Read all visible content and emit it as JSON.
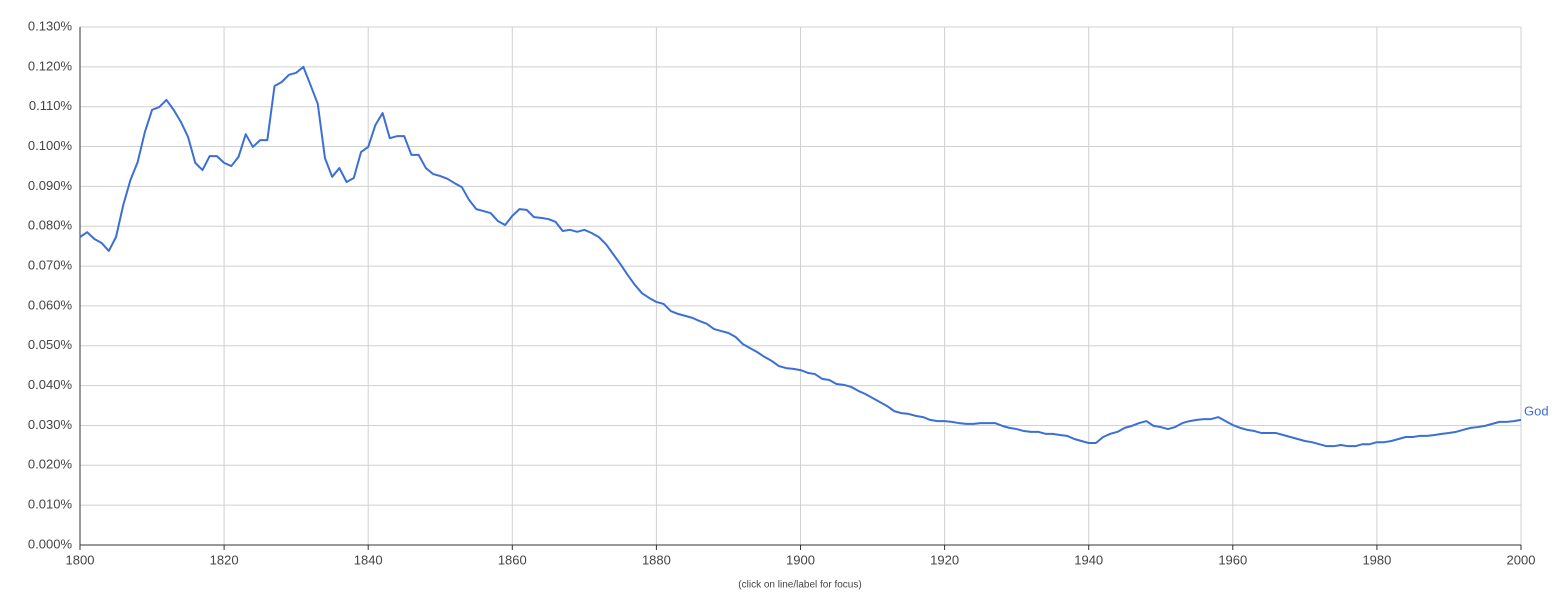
{
  "chart_data": {
    "type": "line",
    "note": "(click on line/label for focus)",
    "x": [
      1800,
      1801,
      1802,
      1803,
      1804,
      1805,
      1806,
      1807,
      1808,
      1809,
      1810,
      1811,
      1812,
      1813,
      1814,
      1815,
      1816,
      1817,
      1818,
      1819,
      1820,
      1821,
      1822,
      1823,
      1824,
      1825,
      1826,
      1827,
      1828,
      1829,
      1830,
      1831,
      1832,
      1833,
      1834,
      1835,
      1836,
      1837,
      1838,
      1839,
      1840,
      1841,
      1842,
      1843,
      1844,
      1845,
      1846,
      1847,
      1848,
      1849,
      1850,
      1851,
      1852,
      1853,
      1854,
      1855,
      1856,
      1857,
      1858,
      1859,
      1860,
      1861,
      1862,
      1863,
      1864,
      1865,
      1866,
      1867,
      1868,
      1869,
      1870,
      1871,
      1872,
      1873,
      1874,
      1875,
      1876,
      1877,
      1878,
      1879,
      1880,
      1881,
      1882,
      1883,
      1884,
      1885,
      1886,
      1887,
      1888,
      1889,
      1890,
      1891,
      1892,
      1893,
      1894,
      1895,
      1896,
      1897,
      1898,
      1899,
      1900,
      1901,
      1902,
      1903,
      1904,
      1905,
      1906,
      1907,
      1908,
      1909,
      1910,
      1911,
      1912,
      1913,
      1914,
      1915,
      1916,
      1917,
      1918,
      1919,
      1920,
      1921,
      1922,
      1923,
      1924,
      1925,
      1926,
      1927,
      1928,
      1929,
      1930,
      1931,
      1932,
      1933,
      1934,
      1935,
      1936,
      1937,
      1938,
      1939,
      1940,
      1941,
      1942,
      1943,
      1944,
      1945,
      1946,
      1947,
      1948,
      1949,
      1950,
      1951,
      1952,
      1953,
      1954,
      1955,
      1956,
      1957,
      1958,
      1959,
      1960,
      1961,
      1962,
      1963,
      1964,
      1965,
      1966,
      1967,
      1968,
      1969,
      1970,
      1971,
      1972,
      1973,
      1974,
      1975,
      1976,
      1977,
      1978,
      1979,
      1980,
      1981,
      1982,
      1983,
      1984,
      1985,
      1986,
      1987,
      1988,
      1989,
      1990,
      1991,
      1992,
      1993,
      1994,
      1995,
      1996,
      1997,
      1998,
      1999,
      2000
    ],
    "series": [
      {
        "name": "God",
        "color": "#3c6fd6",
        "values": [
          0.0773,
          0.0785,
          0.0768,
          0.0758,
          0.0738,
          0.0773,
          0.0853,
          0.0916,
          0.0961,
          0.1036,
          0.1092,
          0.1099,
          0.1117,
          0.1092,
          0.1062,
          0.1024,
          0.0959,
          0.0941,
          0.0976,
          0.0976,
          0.0959,
          0.0951,
          0.0974,
          0.1031,
          0.0999,
          0.1016,
          0.1016,
          0.1152,
          0.1162,
          0.118,
          0.1185,
          0.12,
          0.1154,
          0.1107,
          0.0971,
          0.0924,
          0.0946,
          0.0911,
          0.0921,
          0.0986,
          0.0999,
          0.1054,
          0.1084,
          0.1021,
          0.1026,
          0.1026,
          0.0979,
          0.0979,
          0.0946,
          0.0931,
          0.0926,
          0.0919,
          0.0908,
          0.0898,
          0.0866,
          0.0843,
          0.0838,
          0.0833,
          0.0813,
          0.0803,
          0.0826,
          0.0843,
          0.0841,
          0.0823,
          0.0821,
          0.0818,
          0.0811,
          0.0788,
          0.0791,
          0.0786,
          0.0791,
          0.0783,
          0.0773,
          0.0755,
          0.073,
          0.0705,
          0.0678,
          0.0653,
          0.0632,
          0.062,
          0.061,
          0.0605,
          0.0587,
          0.058,
          0.0575,
          0.057,
          0.0562,
          0.0555,
          0.0542,
          0.0537,
          0.0532,
          0.0522,
          0.0504,
          0.0494,
          0.0484,
          0.0472,
          0.0462,
          0.0449,
          0.0444,
          0.0442,
          0.0439,
          0.0432,
          0.0429,
          0.0417,
          0.0414,
          0.0404,
          0.0402,
          0.0397,
          0.0387,
          0.0379,
          0.0369,
          0.0359,
          0.0349,
          0.0336,
          0.0331,
          0.0329,
          0.0324,
          0.0321,
          0.0314,
          0.0311,
          0.0311,
          0.0309,
          0.0306,
          0.0304,
          0.0304,
          0.0306,
          0.0306,
          0.0306,
          0.0299,
          0.0294,
          0.0291,
          0.0286,
          0.0284,
          0.0284,
          0.0279,
          0.0279,
          0.0276,
          0.0274,
          0.0266,
          0.0261,
          0.0256,
          0.0256,
          0.0271,
          0.0279,
          0.0284,
          0.0294,
          0.0299,
          0.0306,
          0.0311,
          0.0299,
          0.0296,
          0.0291,
          0.0296,
          0.0306,
          0.0311,
          0.0314,
          0.0316,
          0.0316,
          0.0321,
          0.0311,
          0.0301,
          0.0294,
          0.0289,
          0.0286,
          0.0281,
          0.0281,
          0.0281,
          0.0276,
          0.0271,
          0.0266,
          0.0261,
          0.0258,
          0.0253,
          0.0248,
          0.0248,
          0.0251,
          0.0248,
          0.0248,
          0.0253,
          0.0253,
          0.0258,
          0.0258,
          0.0261,
          0.0266,
          0.0271,
          0.0271,
          0.0274,
          0.0274,
          0.0276,
          0.0279,
          0.0281,
          0.0284,
          0.0289,
          0.0294,
          0.0296,
          0.0299,
          0.0304,
          0.0309,
          0.0309,
          0.0311,
          0.0314
        ]
      }
    ],
    "xlim": [
      1800,
      2000
    ],
    "xticks": [
      1800,
      1820,
      1840,
      1860,
      1880,
      1900,
      1920,
      1940,
      1960,
      1980,
      2000
    ],
    "ylim": [
      0,
      0.13
    ],
    "yticks": [
      {
        "value": 0,
        "label": "0.000%"
      },
      {
        "value": 0.01,
        "label": "0.010%"
      },
      {
        "value": 0.02,
        "label": "0.020%"
      },
      {
        "value": 0.03,
        "label": "0.030%"
      },
      {
        "value": 0.04,
        "label": "0.040%"
      },
      {
        "value": 0.05,
        "label": "0.050%"
      },
      {
        "value": 0.06,
        "label": "0.060%"
      },
      {
        "value": 0.07,
        "label": "0.070%"
      },
      {
        "value": 0.08,
        "label": "0.080%"
      },
      {
        "value": 0.09,
        "label": "0.090%"
      },
      {
        "value": 0.1,
        "label": "0.100%"
      },
      {
        "value": 0.11,
        "label": "0.110%"
      },
      {
        "value": 0.12,
        "label": "0.120%"
      },
      {
        "value": 0.13,
        "label": "0.130%"
      }
    ],
    "grid": true
  }
}
